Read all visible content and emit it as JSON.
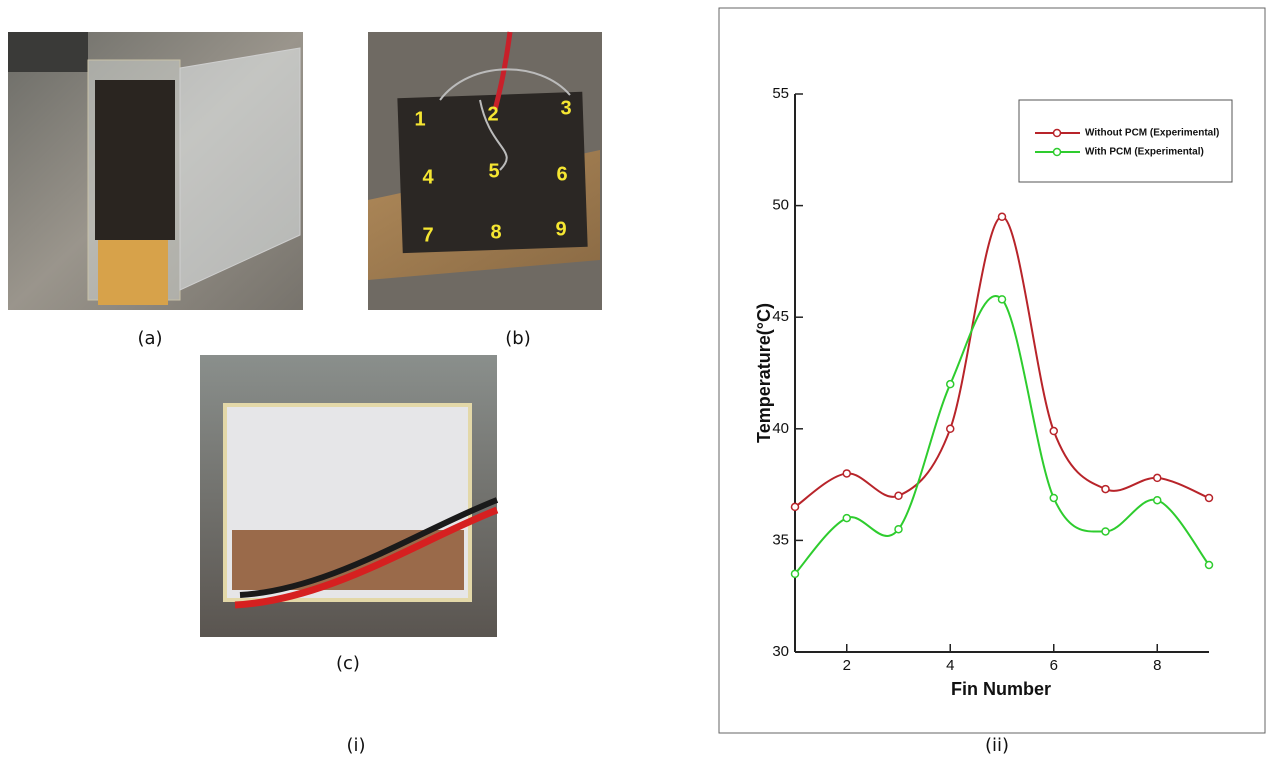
{
  "panels": {
    "a": "(a)",
    "b": "(b)",
    "c": "(c)",
    "i": "(i)",
    "ii": "(ii)"
  },
  "photo_b": {
    "labels": [
      "1",
      "2",
      "3",
      "4",
      "5",
      "6",
      "7",
      "8",
      "9"
    ]
  },
  "chart_data": {
    "type": "line",
    "xlabel": "Fin Number",
    "ylabel": "Temperature(°C)",
    "x": [
      1,
      2,
      3,
      4,
      5,
      6,
      7,
      8,
      9
    ],
    "series": [
      {
        "name": "Without PCM (Experimental)",
        "color": "#b8242a",
        "values": [
          36.5,
          38,
          37,
          40,
          49.5,
          39.9,
          37.3,
          37.8,
          36.9
        ]
      },
      {
        "name": "With PCM (Experimental)",
        "color": "#2ecc2e",
        "values": [
          33.5,
          36,
          35.5,
          42,
          45.8,
          36.9,
          35.4,
          36.8,
          33.9
        ]
      }
    ],
    "xlim": [
      1,
      9
    ],
    "xticks": [
      2,
      4,
      6,
      8
    ],
    "ylim": [
      30,
      55
    ],
    "yticks": [
      30,
      35,
      40,
      45,
      50,
      55
    ],
    "smooth": true,
    "legend": "upper right"
  }
}
